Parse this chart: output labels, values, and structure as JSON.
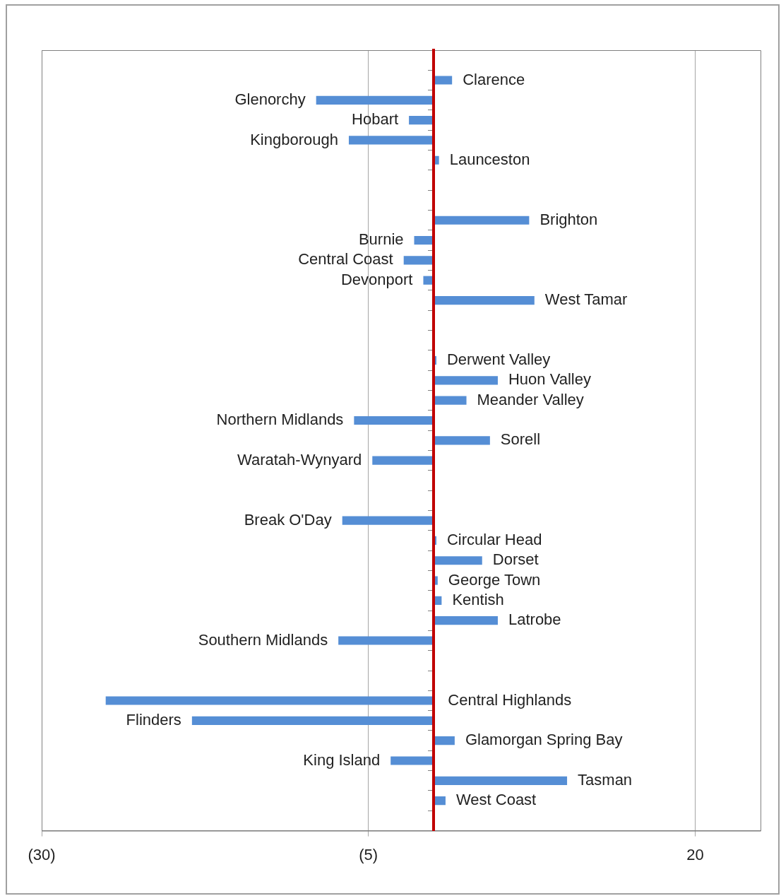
{
  "chart_data": {
    "type": "bar",
    "orientation": "horizontal",
    "categories": [
      null,
      "Clarence",
      "Glenorchy",
      "Hobart",
      "Kingborough",
      "Launceston",
      null,
      null,
      "Brighton",
      "Burnie",
      "Central Coast",
      "Devonport",
      "West Tamar",
      null,
      null,
      "Derwent Valley",
      "Huon Valley",
      "Meander Valley",
      "Northern Midlands",
      "Sorell",
      "Waratah-Wynyard",
      null,
      null,
      "Break O'Day",
      "Circular Head",
      "Dorset",
      "George Town",
      "Kentish",
      "Latrobe",
      "Southern Midlands",
      null,
      null,
      "Central Highlands",
      "Flinders",
      "Glamorgan Spring Bay",
      "King Island",
      "Tasman",
      "West Coast",
      null
    ],
    "values": [
      null,
      1.4,
      -9.0,
      -1.9,
      -6.5,
      0.4,
      null,
      null,
      7.3,
      -1.5,
      -2.3,
      -0.8,
      7.7,
      null,
      null,
      0.2,
      4.9,
      2.5,
      -6.1,
      4.3,
      -4.7,
      null,
      null,
      -7.0,
      0.2,
      3.7,
      0.3,
      0.6,
      4.9,
      -7.3,
      null,
      null,
      -25.1,
      -18.5,
      1.6,
      -3.3,
      10.2,
      0.9,
      null
    ],
    "color": "#558ed5",
    "xlim": [
      -30,
      25
    ],
    "xticks": [
      {
        "value": -30,
        "label": "(30)"
      },
      {
        "value": -5,
        "label": "(5)"
      },
      20
    ],
    "grid": "x",
    "tick_labels": "x"
  }
}
